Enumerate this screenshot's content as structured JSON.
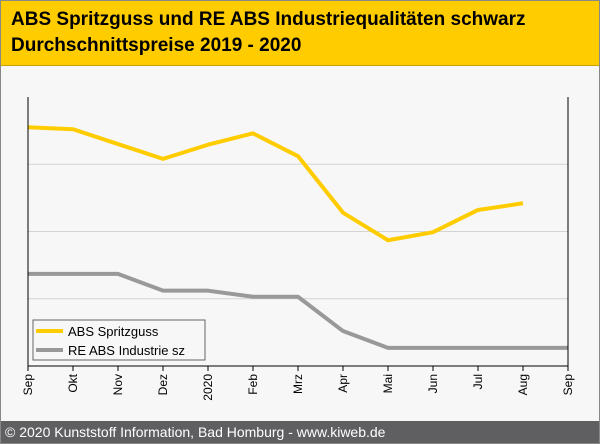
{
  "header": {
    "title_line1": "ABS Spritzguss und RE ABS Industriequalitäten schwarz",
    "title_line2": "Durchschnittspreise 2019 - 2020"
  },
  "footer": {
    "text": "© 2020 Kunststoff Information, Bad Homburg - www.kiweb.de"
  },
  "chart_data": {
    "type": "line",
    "title": "ABS Spritzguss und RE ABS Industriequalitäten schwarz Durchschnittspreise 2019 - 2020",
    "xlabel": "",
    "ylabel": "",
    "categories": [
      "Sep",
      "Okt",
      "Nov",
      "Dez",
      "2020",
      "Feb",
      "Mrz",
      "Apr",
      "Mai",
      "Jun",
      "Jul",
      "Aug",
      "Sep"
    ],
    "ylim": [
      0,
      4
    ],
    "y_unit": "relative (no y-axis labels shown)",
    "grid": true,
    "legend_position": "bottom-left",
    "series": [
      {
        "name": "ABS Spritzguss",
        "color": "#ffcc00",
        "values": [
          3.55,
          3.52,
          3.3,
          3.08,
          3.29,
          3.46,
          3.12,
          2.28,
          1.87,
          1.99,
          2.32,
          2.42,
          null
        ]
      },
      {
        "name": "RE ABS Industrie sz",
        "color": "#999999",
        "values": [
          1.37,
          1.37,
          1.37,
          1.12,
          1.12,
          1.03,
          1.03,
          0.52,
          0.27,
          0.27,
          0.27,
          0.27,
          0.27
        ]
      }
    ]
  }
}
